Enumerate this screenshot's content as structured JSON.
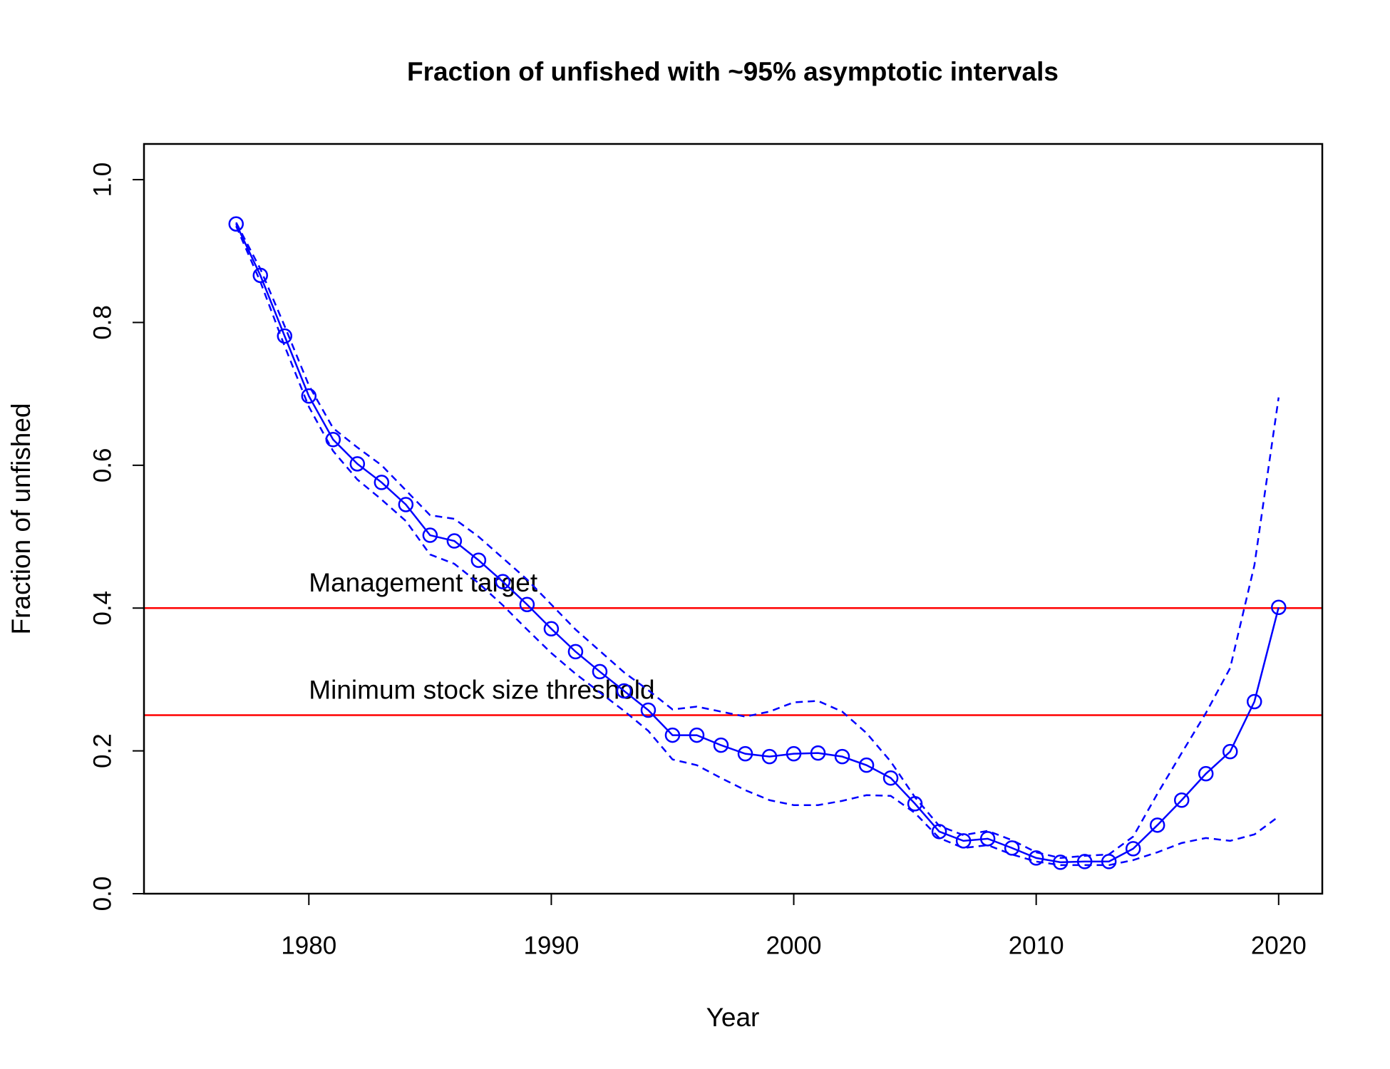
{
  "chart_data": {
    "type": "line",
    "title": "Fraction of unfished with ~95% asymptotic intervals",
    "x_label": "Year",
    "y_label": "Fraction of unfished",
    "x": [
      1977,
      1978,
      1979,
      1980,
      1981,
      1982,
      1983,
      1984,
      1985,
      1986,
      1987,
      1988,
      1989,
      1990,
      1991,
      1992,
      1993,
      1994,
      1995,
      1996,
      1997,
      1998,
      1999,
      2000,
      2001,
      2002,
      2003,
      2004,
      2005,
      2006,
      2007,
      2008,
      2009,
      2010,
      2011,
      2012,
      2013,
      2014,
      2015,
      2016,
      2017,
      2018,
      2019,
      2020
    ],
    "series": [
      {
        "color": "#0000ff",
        "style": "line-points",
        "values": [
          0.938,
          0.866,
          0.781,
          0.697,
          0.636,
          0.602,
          0.576,
          0.545,
          0.502,
          0.494,
          0.467,
          0.437,
          0.405,
          0.371,
          0.339,
          0.311,
          0.284,
          0.257,
          0.222,
          0.222,
          0.208,
          0.196,
          0.192,
          0.196,
          0.197,
          0.192,
          0.18,
          0.162,
          0.126,
          0.087,
          0.074,
          0.077,
          0.064,
          0.05,
          0.044,
          0.045,
          0.045,
          0.063,
          0.096,
          0.131,
          0.168,
          0.199,
          0.269,
          0.401
        ]
      },
      {
        "color": "#0000ff",
        "style": "dashed",
        "values": [
          0.94,
          0.875,
          0.795,
          0.712,
          0.652,
          0.625,
          0.6,
          0.565,
          0.53,
          0.525,
          0.5,
          0.47,
          0.44,
          0.405,
          0.37,
          0.34,
          0.31,
          0.285,
          0.258,
          0.262,
          0.255,
          0.248,
          0.255,
          0.268,
          0.27,
          0.255,
          0.225,
          0.185,
          0.135,
          0.095,
          0.082,
          0.088,
          0.075,
          0.058,
          0.05,
          0.053,
          0.055,
          0.08,
          0.14,
          0.197,
          0.253,
          0.316,
          0.46,
          0.695
        ]
      },
      {
        "color": "#0000ff",
        "style": "dashed",
        "values": [
          0.935,
          0.857,
          0.767,
          0.682,
          0.62,
          0.58,
          0.552,
          0.522,
          0.475,
          0.462,
          0.435,
          0.404,
          0.37,
          0.337,
          0.308,
          0.282,
          0.256,
          0.228,
          0.188,
          0.18,
          0.162,
          0.145,
          0.131,
          0.124,
          0.124,
          0.13,
          0.138,
          0.137,
          0.113,
          0.078,
          0.064,
          0.068,
          0.055,
          0.045,
          0.04,
          0.04,
          0.04,
          0.047,
          0.058,
          0.071,
          0.078,
          0.074,
          0.083,
          0.108
        ]
      }
    ],
    "reference_lines": [
      {
        "value": 0.4,
        "label": "Management target",
        "label_x": 1980,
        "color": "#ff0000"
      },
      {
        "value": 0.25,
        "label": "Minimum stock size threshold",
        "label_x": 1980,
        "color": "#ff0000"
      }
    ],
    "xlim": [
      1973.2,
      2021.8
    ],
    "ylim": [
      0,
      1.05
    ],
    "xticks": [
      1980,
      1990,
      2000,
      2010,
      2020
    ],
    "yticks": [
      {
        "value": 0,
        "label": "0.0"
      },
      {
        "value": 0.2,
        "label": "0.2"
      },
      {
        "value": 0.4,
        "label": "0.4"
      },
      {
        "value": 0.6,
        "label": "0.6"
      },
      {
        "value": 0.8,
        "label": "0.8"
      },
      {
        "value": 1,
        "label": "1.0"
      }
    ]
  }
}
